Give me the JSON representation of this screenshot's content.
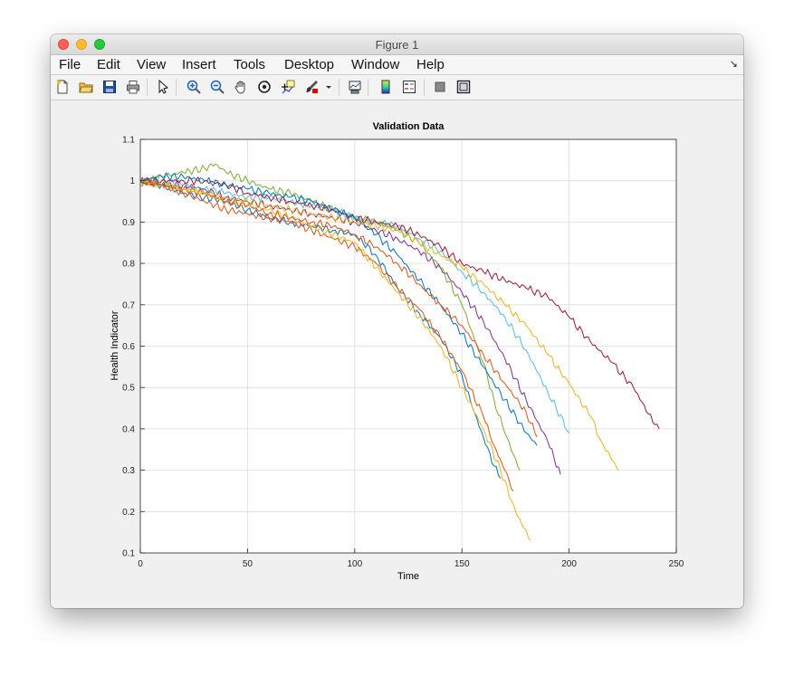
{
  "window": {
    "title": "Figure 1"
  },
  "menu": {
    "items": [
      "File",
      "Edit",
      "View",
      "Insert",
      "Tools",
      "Desktop",
      "Window",
      "Help"
    ]
  },
  "toolbar": {
    "icons": [
      "new-figure-icon",
      "open-file-icon",
      "save-icon",
      "print-icon",
      "pointer-icon",
      "zoom-in-icon",
      "zoom-out-icon",
      "pan-hand-icon",
      "rotate-3d-icon",
      "data-cursor-icon",
      "brush-icon",
      "brush-dropdown-icon",
      "link-plot-icon",
      "insert-colorbar-icon",
      "insert-legend-icon",
      "hide-plot-tools-icon",
      "show-plot-tools-icon"
    ]
  },
  "chart_data": {
    "type": "line",
    "title": "Validation Data",
    "xlabel": "Time",
    "ylabel": "Health Indicator",
    "xlim": [
      0,
      250
    ],
    "ylim": [
      0.1,
      1.1
    ],
    "xticks": [
      0,
      50,
      100,
      150,
      200,
      250
    ],
    "yticks": [
      0.1,
      0.2,
      0.3,
      0.4,
      0.5,
      0.6,
      0.7,
      0.8,
      0.9,
      1,
      1.1
    ],
    "grid": true,
    "series": [
      {
        "color": "#0072BD",
        "points": [
          [
            0,
            1.0
          ],
          [
            10,
            0.99
          ],
          [
            20,
            0.97
          ],
          [
            30,
            0.96
          ],
          [
            40,
            0.95
          ],
          [
            50,
            0.93
          ],
          [
            60,
            0.91
          ],
          [
            70,
            0.9
          ],
          [
            80,
            0.89
          ],
          [
            90,
            0.88
          ],
          [
            100,
            0.87
          ],
          [
            110,
            0.82
          ],
          [
            120,
            0.74
          ],
          [
            130,
            0.68
          ],
          [
            140,
            0.62
          ],
          [
            150,
            0.53
          ],
          [
            155,
            0.45
          ],
          [
            160,
            0.38
          ],
          [
            165,
            0.31
          ],
          [
            168,
            0.28
          ]
        ]
      },
      {
        "color": "#D95319",
        "points": [
          [
            0,
            1.0
          ],
          [
            10,
            0.99
          ],
          [
            20,
            0.97
          ],
          [
            30,
            0.95
          ],
          [
            40,
            0.93
          ],
          [
            50,
            0.92
          ],
          [
            60,
            0.91
          ],
          [
            70,
            0.9
          ],
          [
            80,
            0.88
          ],
          [
            90,
            0.86
          ],
          [
            100,
            0.84
          ],
          [
            110,
            0.8
          ],
          [
            120,
            0.74
          ],
          [
            130,
            0.69
          ],
          [
            140,
            0.62
          ],
          [
            150,
            0.54
          ],
          [
            160,
            0.43
          ],
          [
            165,
            0.36
          ],
          [
            170,
            0.3
          ],
          [
            174,
            0.25
          ]
        ]
      },
      {
        "color": "#EDB120",
        "points": [
          [
            0,
            1.0
          ],
          [
            10,
            0.99
          ],
          [
            20,
            0.98
          ],
          [
            30,
            0.97
          ],
          [
            40,
            0.95
          ],
          [
            50,
            0.94
          ],
          [
            60,
            0.93
          ],
          [
            70,
            0.91
          ],
          [
            80,
            0.89
          ],
          [
            90,
            0.87
          ],
          [
            100,
            0.85
          ],
          [
            110,
            0.79
          ],
          [
            120,
            0.73
          ],
          [
            130,
            0.67
          ],
          [
            140,
            0.6
          ],
          [
            150,
            0.5
          ],
          [
            160,
            0.4
          ],
          [
            168,
            0.3
          ],
          [
            175,
            0.2
          ],
          [
            182,
            0.13
          ]
        ]
      },
      {
        "color": "#7E2F8E",
        "points": [
          [
            0,
            1.0
          ],
          [
            10,
            0.99
          ],
          [
            20,
            0.99
          ],
          [
            30,
            0.98
          ],
          [
            40,
            0.96
          ],
          [
            50,
            0.95
          ],
          [
            60,
            0.94
          ],
          [
            70,
            0.93
          ],
          [
            80,
            0.92
          ],
          [
            90,
            0.91
          ],
          [
            100,
            0.9
          ],
          [
            110,
            0.88
          ],
          [
            120,
            0.86
          ],
          [
            130,
            0.83
          ],
          [
            140,
            0.79
          ],
          [
            150,
            0.73
          ],
          [
            160,
            0.66
          ],
          [
            170,
            0.57
          ],
          [
            180,
            0.47
          ],
          [
            190,
            0.37
          ],
          [
            196,
            0.29
          ]
        ]
      },
      {
        "color": "#77AC30",
        "points": [
          [
            0,
            0.99
          ],
          [
            10,
            1.01
          ],
          [
            20,
            1.02
          ],
          [
            30,
            1.03
          ],
          [
            35,
            1.04
          ],
          [
            40,
            1.02
          ],
          [
            50,
            1.0
          ],
          [
            60,
            0.98
          ],
          [
            70,
            0.97
          ],
          [
            80,
            0.95
          ],
          [
            90,
            0.93
          ],
          [
            100,
            0.91
          ],
          [
            110,
            0.9
          ],
          [
            120,
            0.88
          ],
          [
            130,
            0.85
          ],
          [
            140,
            0.79
          ],
          [
            150,
            0.7
          ],
          [
            160,
            0.56
          ],
          [
            165,
            0.47
          ],
          [
            170,
            0.39
          ],
          [
            177,
            0.3
          ]
        ]
      },
      {
        "color": "#4DBEEE",
        "points": [
          [
            0,
            1.0
          ],
          [
            10,
            1.0
          ],
          [
            20,
            0.99
          ],
          [
            30,
            0.98
          ],
          [
            40,
            0.97
          ],
          [
            50,
            0.96
          ],
          [
            60,
            0.96
          ],
          [
            70,
            0.95
          ],
          [
            80,
            0.94
          ],
          [
            90,
            0.93
          ],
          [
            100,
            0.91
          ],
          [
            110,
            0.9
          ],
          [
            120,
            0.89
          ],
          [
            130,
            0.86
          ],
          [
            140,
            0.83
          ],
          [
            150,
            0.78
          ],
          [
            160,
            0.73
          ],
          [
            170,
            0.67
          ],
          [
            180,
            0.59
          ],
          [
            190,
            0.49
          ],
          [
            200,
            0.39
          ]
        ]
      },
      {
        "color": "#A2142F",
        "points": [
          [
            0,
            1.0
          ],
          [
            10,
            1.0
          ],
          [
            20,
            1.0
          ],
          [
            30,
            1.0
          ],
          [
            40,
            0.99
          ],
          [
            50,
            0.97
          ],
          [
            60,
            0.96
          ],
          [
            70,
            0.95
          ],
          [
            80,
            0.94
          ],
          [
            90,
            0.93
          ],
          [
            100,
            0.91
          ],
          [
            110,
            0.9
          ],
          [
            120,
            0.89
          ],
          [
            130,
            0.87
          ],
          [
            140,
            0.84
          ],
          [
            150,
            0.8
          ],
          [
            160,
            0.78
          ],
          [
            170,
            0.76
          ],
          [
            180,
            0.74
          ],
          [
            190,
            0.72
          ],
          [
            200,
            0.67
          ],
          [
            210,
            0.61
          ],
          [
            220,
            0.56
          ],
          [
            230,
            0.5
          ],
          [
            240,
            0.41
          ],
          [
            242,
            0.4
          ]
        ]
      },
      {
        "color": "#0072BD",
        "points": [
          [
            0,
            1.0
          ],
          [
            10,
            1.01
          ],
          [
            20,
            1.01
          ],
          [
            30,
            1.0
          ],
          [
            40,
            0.99
          ],
          [
            50,
            0.98
          ],
          [
            60,
            0.97
          ],
          [
            70,
            0.96
          ],
          [
            80,
            0.95
          ],
          [
            90,
            0.93
          ],
          [
            100,
            0.91
          ],
          [
            110,
            0.87
          ],
          [
            120,
            0.82
          ],
          [
            130,
            0.76
          ],
          [
            140,
            0.7
          ],
          [
            150,
            0.63
          ],
          [
            160,
            0.55
          ],
          [
            170,
            0.47
          ],
          [
            180,
            0.39
          ],
          [
            185,
            0.36
          ]
        ]
      },
      {
        "color": "#D95319",
        "points": [
          [
            0,
            1.0
          ],
          [
            10,
            0.99
          ],
          [
            20,
            0.98
          ],
          [
            30,
            0.97
          ],
          [
            40,
            0.95
          ],
          [
            50,
            0.94
          ],
          [
            60,
            0.92
          ],
          [
            70,
            0.91
          ],
          [
            80,
            0.9
          ],
          [
            90,
            0.89
          ],
          [
            100,
            0.87
          ],
          [
            110,
            0.84
          ],
          [
            120,
            0.8
          ],
          [
            130,
            0.75
          ],
          [
            140,
            0.7
          ],
          [
            150,
            0.65
          ],
          [
            160,
            0.58
          ],
          [
            170,
            0.51
          ],
          [
            180,
            0.44
          ],
          [
            185,
            0.38
          ]
        ]
      },
      {
        "color": "#EDB120",
        "points": [
          [
            0,
            1.0
          ],
          [
            10,
            0.99
          ],
          [
            20,
            0.98
          ],
          [
            30,
            0.97
          ],
          [
            40,
            0.96
          ],
          [
            50,
            0.95
          ],
          [
            60,
            0.94
          ],
          [
            70,
            0.93
          ],
          [
            80,
            0.92
          ],
          [
            90,
            0.91
          ],
          [
            100,
            0.9
          ],
          [
            110,
            0.89
          ],
          [
            120,
            0.88
          ],
          [
            130,
            0.85
          ],
          [
            140,
            0.82
          ],
          [
            150,
            0.79
          ],
          [
            160,
            0.75
          ],
          [
            170,
            0.7
          ],
          [
            180,
            0.65
          ],
          [
            190,
            0.58
          ],
          [
            200,
            0.51
          ],
          [
            210,
            0.43
          ],
          [
            215,
            0.37
          ],
          [
            223,
            0.3
          ]
        ]
      }
    ]
  }
}
